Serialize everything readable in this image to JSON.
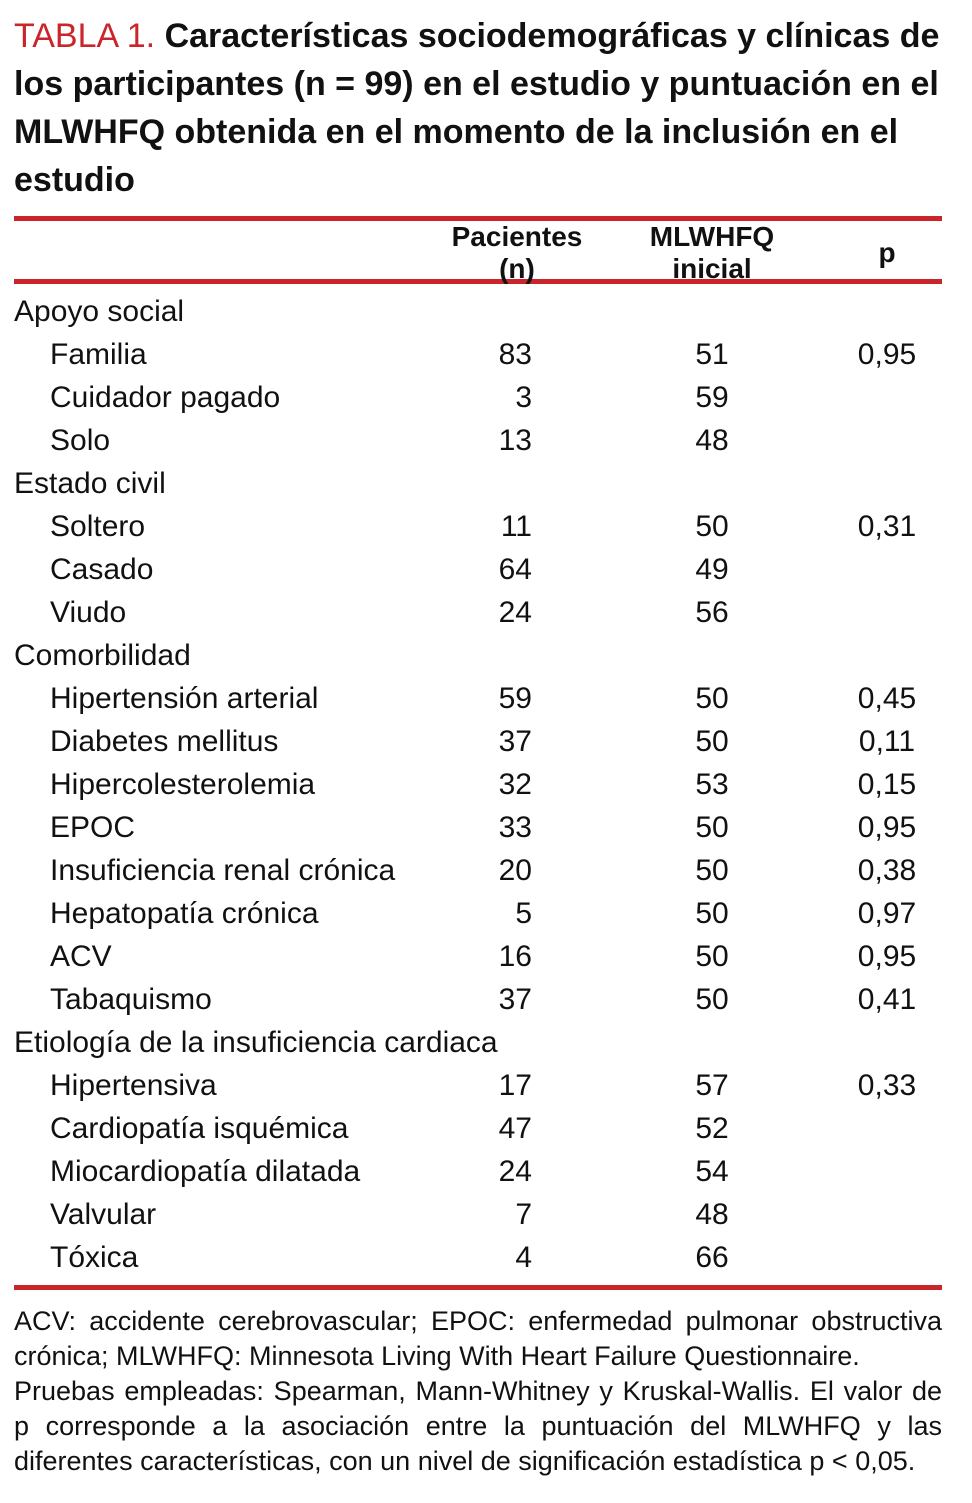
{
  "colors": {
    "accent_red": "#c9252b",
    "text": "#111111"
  },
  "title": {
    "label": "TABLA 1.",
    "text": "Características sociodemográficas y clínicas de los participantes (n = 99) en el estudio y puntuación en el MLWHFQ obtenida en el momento de la inclusión en el estudio"
  },
  "table": {
    "columns": [
      "Pacientes (n)",
      "MLWHFQ inicial",
      "p"
    ],
    "sections": [
      {
        "header": "Apoyo social",
        "rows": [
          {
            "label": "Familia",
            "pacientes": "83",
            "mlwhfq": "51",
            "p": "0,95"
          },
          {
            "label": "Cuidador pagado",
            "pacientes": "3",
            "mlwhfq": "59",
            "p": ""
          },
          {
            "label": "Solo",
            "pacientes": "13",
            "mlwhfq": "48",
            "p": ""
          }
        ]
      },
      {
        "header": "Estado civil",
        "rows": [
          {
            "label": "Soltero",
            "pacientes": "11",
            "mlwhfq": "50",
            "p": "0,31"
          },
          {
            "label": "Casado",
            "pacientes": "64",
            "mlwhfq": "49",
            "p": ""
          },
          {
            "label": "Viudo",
            "pacientes": "24",
            "mlwhfq": "56",
            "p": ""
          }
        ]
      },
      {
        "header": "Comorbilidad",
        "rows": [
          {
            "label": "Hipertensión arterial",
            "pacientes": "59",
            "mlwhfq": "50",
            "p": "0,45"
          },
          {
            "label": "Diabetes mellitus",
            "pacientes": "37",
            "mlwhfq": "50",
            "p": "0,11"
          },
          {
            "label": "Hipercolesterolemia",
            "pacientes": "32",
            "mlwhfq": "53",
            "p": "0,15"
          },
          {
            "label": "EPOC",
            "pacientes": "33",
            "mlwhfq": "50",
            "p": "0,95"
          },
          {
            "label": "Insuficiencia renal crónica",
            "pacientes": "20",
            "mlwhfq": "50",
            "p": "0,38"
          },
          {
            "label": "Hepatopatía crónica",
            "pacientes": "5",
            "mlwhfq": "50",
            "p": "0,97"
          },
          {
            "label": "ACV",
            "pacientes": "16",
            "mlwhfq": "50",
            "p": "0,95"
          },
          {
            "label": "Tabaquismo",
            "pacientes": "37",
            "mlwhfq": "50",
            "p": "0,41"
          }
        ]
      },
      {
        "header": "Etiología de la insuficiencia cardiaca",
        "rows": [
          {
            "label": "Hipertensiva",
            "pacientes": "17",
            "mlwhfq": "57",
            "p": "0,33"
          },
          {
            "label": "Cardiopatía isquémica",
            "pacientes": "47",
            "mlwhfq": "52",
            "p": ""
          },
          {
            "label": "Miocardiopatía dilatada",
            "pacientes": "24",
            "mlwhfq": "54",
            "p": ""
          },
          {
            "label": "Valvular",
            "pacientes": "7",
            "mlwhfq": "48",
            "p": ""
          },
          {
            "label": "Tóxica",
            "pacientes": "4",
            "mlwhfq": "66",
            "p": ""
          }
        ]
      }
    ]
  },
  "footnotes": [
    "ACV: accidente cerebrovascular; EPOC: enfermedad pulmonar obstructiva crónica; MLWHFQ: Minnesota Living With Heart Failure Questionnaire.",
    "Pruebas empleadas: Spearman, Mann-Whitney y Kruskal-Wallis. El valor de p corresponde a la asociación entre la puntuación del MLWHFQ y las diferentes características, con un nivel de significación estadística p < 0,05."
  ]
}
